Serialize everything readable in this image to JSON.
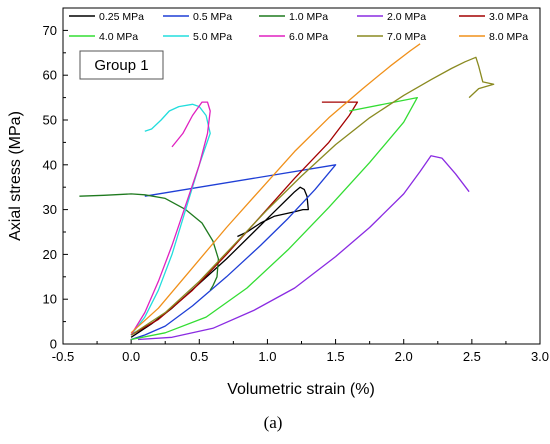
{
  "caption": "(a)",
  "chart_data": {
    "type": "line",
    "title": "",
    "xlabel": "Volumetric strain (%)",
    "ylabel": "Axial stress (MPa)",
    "xlim": [
      -0.5,
      3.0
    ],
    "ylim": [
      0,
      75
    ],
    "xticks": [
      "-0.5",
      "0.0",
      "0.5",
      "1.0",
      "1.5",
      "2.0",
      "2.5",
      "3.0"
    ],
    "yticks": [
      "0",
      "10",
      "20",
      "30",
      "40",
      "50",
      "60",
      "70"
    ],
    "annotation": "Group 1",
    "grid": false,
    "legend_position": "top",
    "series": [
      {
        "name": "0.25 MPa",
        "color": "#000000",
        "x": [
          0.0,
          0.05,
          0.15,
          0.3,
          0.5,
          0.7,
          0.9,
          1.05,
          1.15,
          1.2,
          1.24,
          1.27,
          1.29,
          1.3,
          1.26,
          1.2,
          1.05,
          0.95,
          0.85,
          0.78
        ],
        "y": [
          1.5,
          2.5,
          4.5,
          8.0,
          13.5,
          19.0,
          25.0,
          29.5,
          32.5,
          34.0,
          35.0,
          34.5,
          33.0,
          30.0,
          30.0,
          29.5,
          28.5,
          27.0,
          25.0,
          24.0
        ]
      },
      {
        "name": "0.5 MPa",
        "color": "#1f3fd6",
        "x": [
          0.0,
          0.1,
          0.25,
          0.45,
          0.7,
          0.95,
          1.15,
          1.35,
          1.5,
          0.1
        ],
        "y": [
          1.0,
          2.0,
          4.0,
          8.5,
          15.0,
          22.0,
          28.0,
          34.5,
          40.0,
          33.0
        ]
      },
      {
        "name": "1.0 MPa",
        "color": "#1f7a1f",
        "x": [
          -0.38,
          -0.2,
          0.0,
          0.1,
          0.25,
          0.4,
          0.52,
          0.6,
          0.64,
          0.63,
          0.6,
          0.58
        ],
        "y": [
          33.0,
          33.2,
          33.5,
          33.3,
          32.5,
          30.0,
          27.0,
          23.0,
          19.0,
          15.0,
          13.0,
          12.0
        ]
      },
      {
        "name": "2.0 MPa",
        "color": "#8a2be2",
        "x": [
          0.05,
          0.3,
          0.6,
          0.9,
          1.2,
          1.5,
          1.75,
          2.0,
          2.12,
          2.2,
          2.28,
          2.38,
          2.48
        ],
        "y": [
          1.0,
          1.5,
          3.5,
          7.5,
          12.5,
          19.5,
          26.0,
          33.5,
          38.5,
          42.0,
          41.5,
          38.0,
          34.0
        ]
      },
      {
        "name": "3.0 MPa",
        "color": "#a40000",
        "x": [
          0.0,
          0.2,
          0.45,
          0.7,
          0.95,
          1.2,
          1.45,
          1.6,
          1.66,
          1.4
        ],
        "y": [
          2.0,
          5.5,
          12.0,
          20.0,
          28.5,
          37.0,
          45.0,
          51.0,
          54.0,
          54.0
        ]
      },
      {
        "name": "4.0 MPa",
        "color": "#33dd33",
        "x": [
          0.0,
          0.25,
          0.55,
          0.85,
          1.15,
          1.45,
          1.75,
          2.0,
          2.1,
          1.6
        ],
        "y": [
          1.0,
          2.5,
          6.0,
          12.5,
          21.0,
          30.5,
          40.5,
          49.5,
          55.0,
          52.0
        ]
      },
      {
        "name": "5.0 MPa",
        "color": "#22dddd",
        "x": [
          0.0,
          0.1,
          0.2,
          0.3,
          0.4,
          0.5,
          0.58,
          0.55,
          0.5,
          0.45,
          0.35,
          0.28,
          0.22,
          0.15,
          0.1
        ],
        "y": [
          2.0,
          6.0,
          12.0,
          20.0,
          30.0,
          40.0,
          47.0,
          51.0,
          53.0,
          53.5,
          53.0,
          52.0,
          50.0,
          48.0,
          47.5
        ]
      },
      {
        "name": "6.0 MPa",
        "color": "#e020c0",
        "x": [
          0.0,
          0.1,
          0.2,
          0.3,
          0.4,
          0.5,
          0.56,
          0.58,
          0.56,
          0.52,
          0.45,
          0.38,
          0.3
        ],
        "y": [
          2.0,
          7.0,
          14.0,
          22.0,
          31.0,
          40.0,
          47.0,
          52.0,
          54.0,
          54.0,
          51.0,
          47.0,
          44.0
        ]
      },
      {
        "name": "7.0 MPa",
        "color": "#8a8a20",
        "x": [
          0.0,
          0.25,
          0.5,
          0.75,
          1.0,
          1.25,
          1.5,
          1.75,
          2.0,
          2.2,
          2.35,
          2.45,
          2.53,
          2.55,
          2.58,
          2.66,
          2.55,
          2.48
        ],
        "y": [
          2.0,
          7.0,
          14.0,
          22.0,
          30.0,
          37.5,
          44.5,
          50.5,
          55.5,
          59.0,
          61.5,
          63.0,
          64.0,
          62.0,
          58.5,
          58.0,
          57.0,
          55.0
        ]
      },
      {
        "name": "8.0 MPa",
        "color": "#f0901a",
        "x": [
          0.0,
          0.2,
          0.45,
          0.7,
          0.95,
          1.2,
          1.45,
          1.7,
          1.9,
          2.05,
          2.12
        ],
        "y": [
          2.5,
          8.0,
          17.0,
          26.0,
          34.5,
          43.0,
          50.5,
          57.0,
          62.0,
          65.5,
          67.0
        ]
      }
    ]
  }
}
